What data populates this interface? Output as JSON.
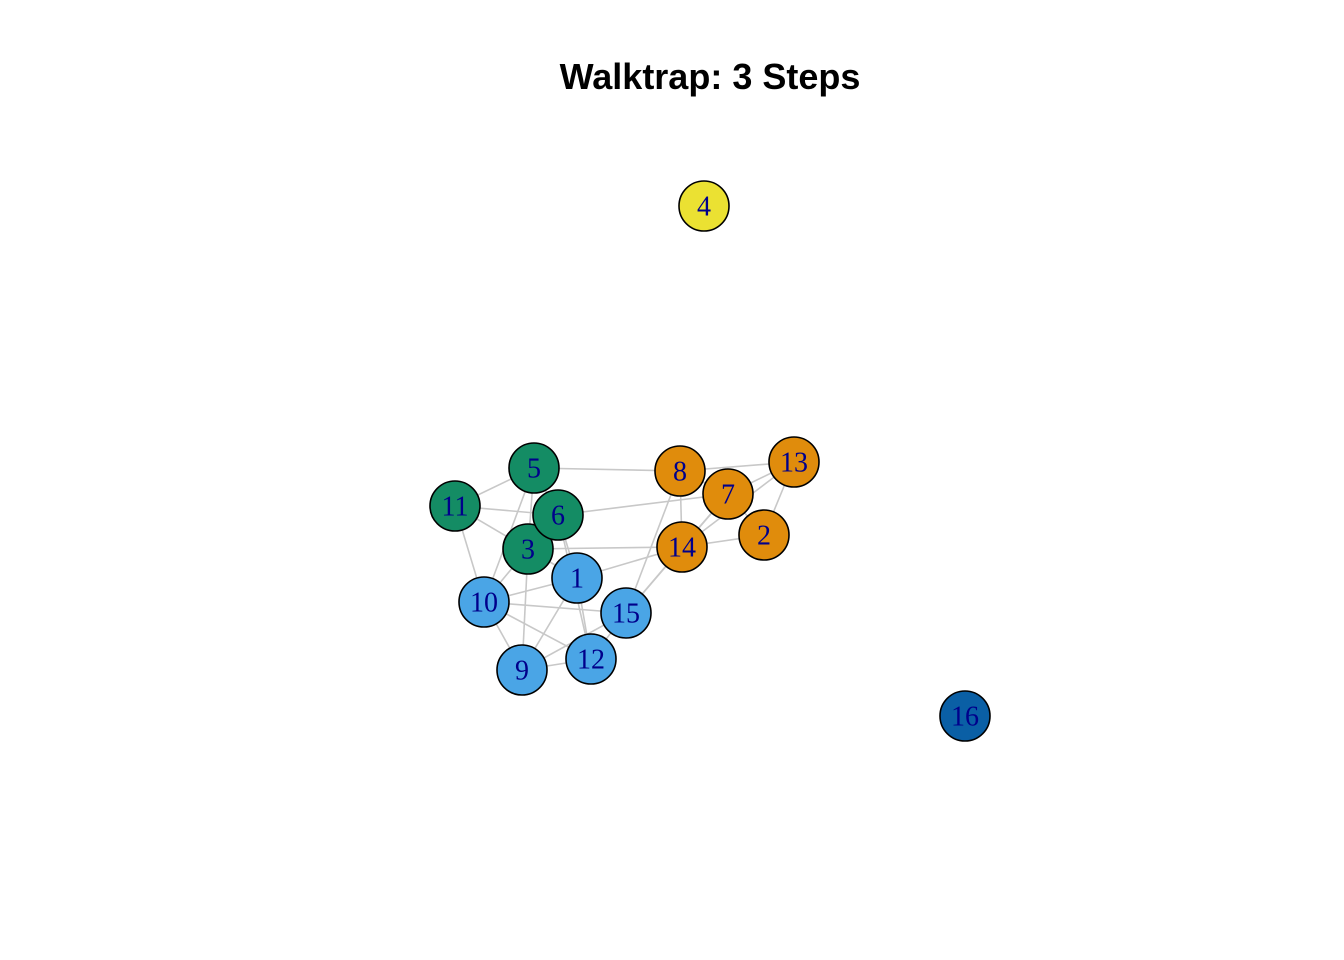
{
  "title": "Walktrap: 3 Steps",
  "colors": {
    "edge": "#c8c8c8",
    "node_border": "#000000",
    "label": "#00008b",
    "communities": {
      "green": "#148c64",
      "orange": "#e08c0c",
      "blue": "#4aa5e6",
      "yellow": "#ebe132",
      "darkblue": "#0a5fa5"
    }
  },
  "nodes": [
    {
      "id": "1",
      "label": "1",
      "community": "blue"
    },
    {
      "id": "2",
      "label": "2",
      "community": "orange"
    },
    {
      "id": "3",
      "label": "3",
      "community": "green"
    },
    {
      "id": "4",
      "label": "4",
      "community": "yellow"
    },
    {
      "id": "5",
      "label": "5",
      "community": "green"
    },
    {
      "id": "6",
      "label": "6",
      "community": "green"
    },
    {
      "id": "7",
      "label": "7",
      "community": "orange"
    },
    {
      "id": "8",
      "label": "8",
      "community": "orange"
    },
    {
      "id": "9",
      "label": "9",
      "community": "blue"
    },
    {
      "id": "10",
      "label": "10",
      "community": "blue"
    },
    {
      "id": "11",
      "label": "11",
      "community": "green"
    },
    {
      "id": "12",
      "label": "12",
      "community": "blue"
    },
    {
      "id": "13",
      "label": "13",
      "community": "orange"
    },
    {
      "id": "14",
      "label": "14",
      "community": "orange"
    },
    {
      "id": "15",
      "label": "15",
      "community": "blue"
    },
    {
      "id": "16",
      "label": "16",
      "community": "darkblue"
    }
  ],
  "edges": [
    [
      "5",
      "11"
    ],
    [
      "5",
      "3"
    ],
    [
      "5",
      "6"
    ],
    [
      "5",
      "8"
    ],
    [
      "5",
      "10"
    ],
    [
      "11",
      "6"
    ],
    [
      "11",
      "3"
    ],
    [
      "11",
      "10"
    ],
    [
      "6",
      "3"
    ],
    [
      "6",
      "7"
    ],
    [
      "6",
      "1"
    ],
    [
      "6",
      "12"
    ],
    [
      "3",
      "10"
    ],
    [
      "3",
      "9"
    ],
    [
      "3",
      "14"
    ],
    [
      "3",
      "1"
    ],
    [
      "1",
      "10"
    ],
    [
      "1",
      "9"
    ],
    [
      "1",
      "12"
    ],
    [
      "1",
      "14"
    ],
    [
      "10",
      "15"
    ],
    [
      "10",
      "9"
    ],
    [
      "10",
      "12"
    ],
    [
      "9",
      "12"
    ],
    [
      "9",
      "15"
    ],
    [
      "12",
      "15"
    ],
    [
      "15",
      "14"
    ],
    [
      "15",
      "7"
    ],
    [
      "8",
      "13"
    ],
    [
      "8",
      "7"
    ],
    [
      "8",
      "14"
    ],
    [
      "8",
      "15"
    ],
    [
      "7",
      "13"
    ],
    [
      "7",
      "14"
    ],
    [
      "7",
      "2"
    ],
    [
      "13",
      "2"
    ],
    [
      "13",
      "14"
    ],
    [
      "14",
      "2"
    ]
  ]
}
